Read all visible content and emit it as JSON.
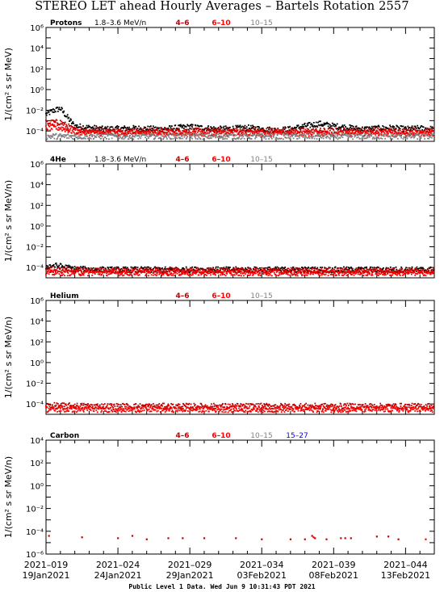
{
  "title": "STEREO LET ahead Hourly Averages – Bartels Rotation 2557",
  "footer": "Public Level 1 Data. Wed Jun  9 10:31:43 PDT 2021",
  "colors": {
    "range_4_6": "#c00000",
    "range_6_10": "#ff0000",
    "range_10_15": "#808080",
    "range_15_27": "#0000ff",
    "low_energy": "#000000"
  },
  "chart_data": [
    {
      "type": "scatter",
      "panel": "Protons",
      "species_label": "Protons",
      "energy_label": "1.8–3.6 MeV/n",
      "legend": [
        "4–6",
        "6–10",
        "10–15"
      ],
      "ylabel": "1/(cm² s sr MeV)",
      "yscale": "log",
      "ylim": [
        1e-05,
        1000000.0
      ],
      "y_tick_labels": [
        "10⁻⁴",
        "10⁻²",
        "10⁰",
        "10²",
        "10⁴",
        "10⁶"
      ],
      "xlim_days": [
        0,
        27
      ],
      "grid": false,
      "series": [
        {
          "name": "1.8–3.6 MeV/n",
          "x_days": [
            0.0,
            0.5,
            1.0,
            1.5,
            2.0,
            2.5,
            4,
            6,
            8,
            10,
            12,
            14,
            16,
            17,
            18,
            19,
            20,
            22,
            24,
            25,
            26,
            27
          ],
          "y": [
            0.004,
            0.009,
            0.015,
            0.002,
            0.0003,
            0.00025,
            0.00015,
            0.00018,
            0.00015,
            0.00025,
            0.00015,
            0.0002,
            0.00012,
            0.00015,
            0.0003,
            0.0005,
            0.0003,
            0.00015,
            0.0002,
            0.00015,
            0.00018,
            0.00015
          ]
        },
        {
          "name": "4–6",
          "x_days": [
            0.0,
            1.0,
            2.0,
            4,
            8,
            12,
            16,
            20,
            24,
            27
          ],
          "y": [
            0.0006,
            0.0007,
            0.00012,
            0.0001,
            0.0001,
            0.0001,
            0.0001,
            0.0001,
            0.0001,
            0.0001
          ]
        },
        {
          "name": "6–10",
          "x_days": [
            0.0,
            1.0,
            2.0,
            4,
            8,
            12,
            16,
            20,
            24,
            27
          ],
          "y": [
            0.0002,
            0.0002,
            8e-05,
            6e-05,
            6e-05,
            6e-05,
            6e-05,
            6e-05,
            6e-05,
            6e-05
          ]
        },
        {
          "name": "10–15",
          "x_days": [
            0,
            27
          ],
          "y": [
            3e-05,
            3e-05
          ]
        }
      ]
    },
    {
      "type": "scatter",
      "panel": "4He",
      "species_label": "4He",
      "energy_label": "1.8–3.6 MeV/n",
      "legend": [
        "4–6",
        "6–10",
        "10–15"
      ],
      "ylabel": "1/(cm² s sr MeV/n)",
      "yscale": "log",
      "ylim": [
        1e-05,
        1000000.0
      ],
      "y_tick_labels": [
        "10⁻⁴",
        "10⁻²",
        "10⁰",
        "10²",
        "10⁴",
        "10⁶"
      ],
      "xlim_days": [
        0,
        27
      ],
      "grid": false,
      "series": [
        {
          "name": "1.8–3.6 MeV/n",
          "x_days": [
            0,
            0.5,
            1,
            2,
            4,
            8,
            12,
            16,
            20,
            24,
            27
          ],
          "y": [
            0.00012,
            0.00015,
            0.00013,
            7e-05,
            6e-05,
            6e-05,
            6e-05,
            6e-05,
            6e-05,
            6e-05,
            6e-05
          ]
        },
        {
          "name": "4–6",
          "x_days": [
            0,
            4,
            8,
            12,
            16,
            20,
            24,
            27
          ],
          "y": [
            6e-05,
            5e-05,
            5e-05,
            5e-05,
            5e-05,
            5e-05,
            5e-05,
            5e-05
          ]
        },
        {
          "name": "6–10",
          "x_days": [
            0,
            27
          ],
          "y": [
            3e-05,
            3e-05
          ]
        }
      ]
    },
    {
      "type": "scatter",
      "panel": "Helium",
      "species_label": "Helium",
      "energy_label": "",
      "legend": [
        "4–6",
        "6–10",
        "10–15"
      ],
      "ylabel": "1/(cm² s sr MeV/n)",
      "yscale": "log",
      "ylim": [
        1e-05,
        1000000.0
      ],
      "y_tick_labels": [
        "10⁻⁴",
        "10⁻²",
        "10⁰",
        "10²",
        "10⁴",
        "10⁶"
      ],
      "xlim_days": [
        0,
        27
      ],
      "grid": false,
      "series": [
        {
          "name": "4–6",
          "x_days": [
            0,
            4,
            8,
            12,
            16,
            20,
            24,
            27
          ],
          "y": [
            7e-05,
            6e-05,
            6e-05,
            6e-05,
            6e-05,
            6e-05,
            6e-05,
            6e-05
          ]
        },
        {
          "name": "6–10",
          "x_days": [
            0,
            27
          ],
          "y": [
            3e-05,
            3e-05
          ]
        }
      ]
    },
    {
      "type": "scatter",
      "panel": "Carbon",
      "species_label": "Carbon",
      "energy_label": "",
      "legend": [
        "4–6",
        "6–10",
        "10–15",
        "15–27"
      ],
      "ylabel": "1/(cm² s sr MeV/n)",
      "yscale": "log",
      "ylim": [
        1e-06,
        10000.0
      ],
      "y_tick_labels": [
        "10⁻⁶",
        "10⁻⁴",
        "10⁻²",
        "10⁰",
        "10²",
        "10⁴"
      ],
      "xlim_days": [
        0,
        27
      ],
      "grid": false,
      "series": [
        {
          "name": "4–6",
          "x_days": [
            0.2,
            2.5,
            5.0,
            6.0,
            7.0,
            8.5,
            9.5,
            11.0,
            13.2,
            15.0,
            17.0,
            18.0,
            18.5,
            18.7,
            19.5,
            20.5,
            20.8,
            21.2,
            23.0,
            23.8,
            24.5
          ],
          "y": [
            4e-05,
            3e-05,
            2.5e-05,
            4e-05,
            2e-05,
            2.5e-05,
            2.5e-05,
            2.5e-05,
            2.5e-05,
            2e-05,
            2e-05,
            2e-05,
            4e-05,
            2.5e-05,
            2e-05,
            2.5e-05,
            2.5e-05,
            2.5e-05,
            3.5e-05,
            3.5e-05,
            2e-05
          ]
        },
        {
          "name": "6–10",
          "x_days": [
            18.6,
            26.4
          ],
          "y": [
            3e-05,
            2e-05
          ]
        }
      ]
    }
  ],
  "x_axis": {
    "tick_labels_doy": [
      "2021–019",
      "2021–024",
      "2021–029",
      "2021–034",
      "2021–039",
      "2021–044"
    ],
    "tick_labels_date": [
      "19Jan2021",
      "24Jan2021",
      "29Jan2021",
      "03Feb2021",
      "08Feb2021",
      "13Feb2021"
    ],
    "major_tick_days": [
      0,
      5,
      10,
      15,
      20,
      25
    ]
  }
}
